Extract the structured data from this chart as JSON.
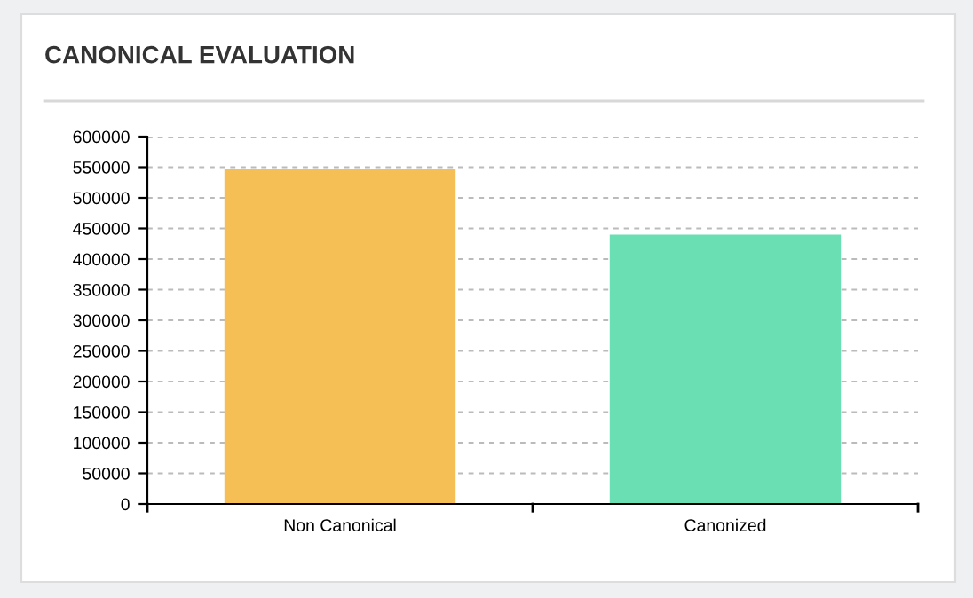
{
  "chart_data": {
    "type": "bar",
    "title": "CANONICAL EVALUATION",
    "categories": [
      "Non Canonical",
      "Canonized"
    ],
    "values": [
      548000,
      440000
    ],
    "colors": [
      "#f6bf55",
      "#6adfb3"
    ],
    "ylim": [
      0,
      600000
    ],
    "yticks": [
      0,
      50000,
      100000,
      150000,
      200000,
      250000,
      300000,
      350000,
      400000,
      450000,
      500000,
      550000,
      600000
    ],
    "grid": "y"
  }
}
